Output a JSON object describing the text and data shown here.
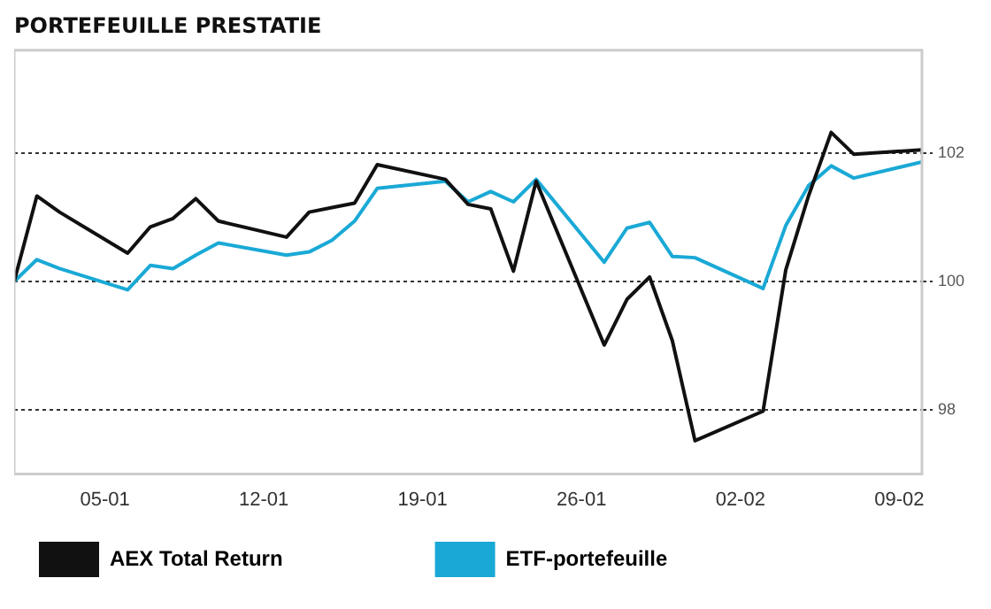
{
  "chart_data": {
    "type": "line",
    "title": "PORTEFEUILLE PRESTATIE",
    "x": [
      "--01-01",
      "--01-02",
      "--01-03",
      "--01-06",
      "--01-07",
      "--01-08",
      "--01-09",
      "--01-10",
      "--01-13",
      "--01-14",
      "--01-15",
      "--01-16",
      "--01-17",
      "--01-20",
      "--01-21",
      "--01-22",
      "--01-23",
      "--01-24",
      "--01-27",
      "--01-28",
      "--01-29",
      "--01-30",
      "--01-31",
      "--02-03",
      "--02-04",
      "--02-05",
      "--02-06",
      "--02-07",
      "--02-10"
    ],
    "series": [
      {
        "name": "AEX Total Return",
        "color": "#111111",
        "values": [
          100.0,
          101.33,
          101.08,
          100.44,
          100.85,
          100.98,
          101.29,
          100.94,
          100.69,
          101.08,
          101.15,
          101.22,
          101.82,
          101.59,
          101.2,
          101.13,
          100.16,
          101.56,
          99.01,
          99.72,
          100.07,
          99.08,
          97.52,
          97.98,
          100.18,
          101.33,
          102.32,
          101.98,
          102.05
        ]
      },
      {
        "name": "ETF-portefeuille",
        "color": "#1aa9d6",
        "values": [
          100.0,
          100.34,
          100.2,
          99.87,
          100.25,
          100.2,
          100.41,
          100.6,
          100.41,
          100.46,
          100.64,
          100.94,
          101.45,
          101.56,
          101.24,
          101.4,
          101.24,
          101.59,
          100.3,
          100.83,
          100.92,
          100.39,
          100.37,
          99.89,
          100.87,
          101.49,
          101.8,
          101.61,
          101.86
        ]
      }
    ],
    "xlim": [
      "--01-01",
      "--02-10"
    ],
    "xticks": [
      {
        "value": "--01-05",
        "label": "05-01"
      },
      {
        "value": "--01-12",
        "label": "12-01"
      },
      {
        "value": "--01-19",
        "label": "19-01"
      },
      {
        "value": "--01-26",
        "label": "26-01"
      },
      {
        "value": "--02-02",
        "label": "02-02"
      },
      {
        "value": "--02-09",
        "label": "09-02"
      }
    ],
    "ylim": [
      97,
      103.6
    ],
    "yticks": [
      98,
      100,
      102
    ],
    "grid": "y",
    "legend": "bottom",
    "marker": "none",
    "line_style": "solid"
  }
}
